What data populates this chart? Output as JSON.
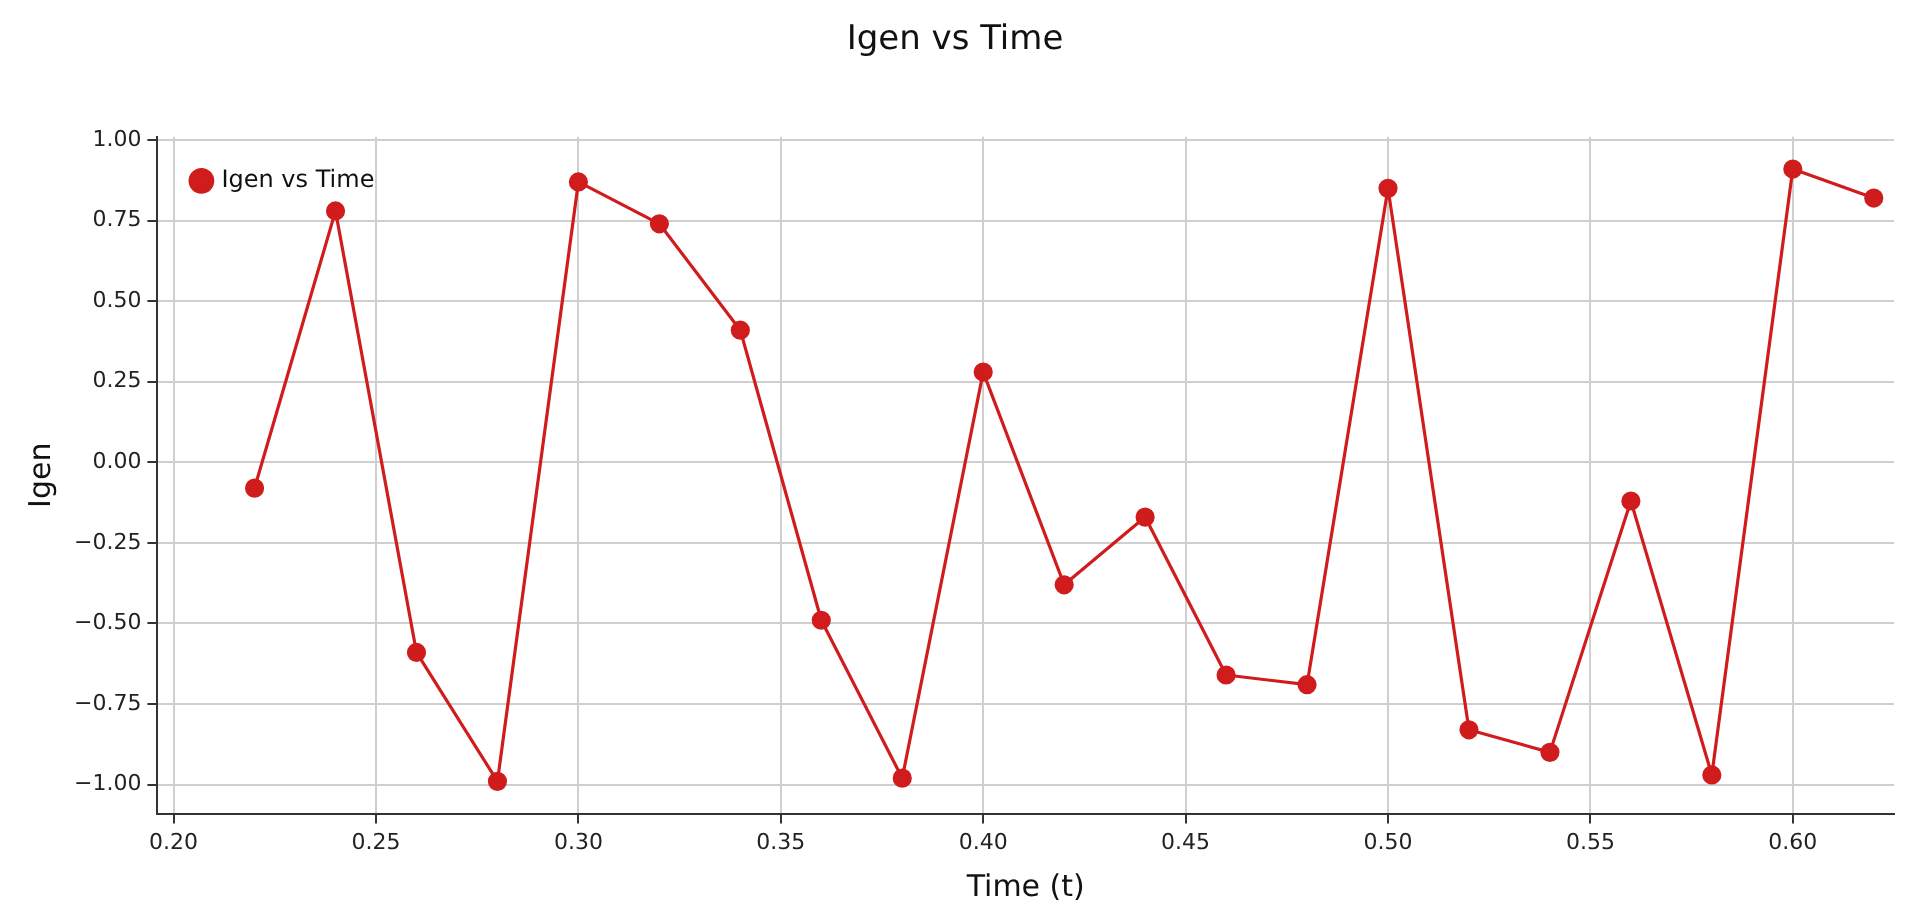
{
  "chart_data": {
    "type": "line",
    "title": "Igen vs Time",
    "xlabel": "Time (t)",
    "ylabel": "Igen",
    "x": [
      0.22,
      0.24,
      0.26,
      0.28,
      0.3,
      0.32,
      0.34,
      0.36,
      0.38,
      0.4,
      0.42,
      0.44,
      0.46,
      0.48,
      0.5,
      0.52,
      0.54,
      0.56,
      0.58,
      0.6,
      0.62
    ],
    "series": [
      {
        "name": "Igen vs Time",
        "color": "#d01c1c",
        "values": [
          -0.08,
          0.78,
          -0.59,
          -0.99,
          0.87,
          0.74,
          0.41,
          -0.49,
          -0.98,
          0.28,
          -0.38,
          -0.17,
          -0.66,
          -0.69,
          0.85,
          -0.83,
          -0.9,
          -0.12,
          -0.97,
          0.91,
          0.82
        ]
      }
    ],
    "xlim": [
      0.196,
      0.625
    ],
    "xticks": [
      {
        "value": 0.2,
        "label": "0.20"
      },
      {
        "value": 0.25,
        "label": "0.25"
      },
      {
        "value": 0.3,
        "label": "0.30"
      },
      {
        "value": 0.35,
        "label": "0.35"
      },
      {
        "value": 0.4,
        "label": "0.40"
      },
      {
        "value": 0.45,
        "label": "0.45"
      },
      {
        "value": 0.5,
        "label": "0.50"
      },
      {
        "value": 0.55,
        "label": "0.55"
      },
      {
        "value": 0.6,
        "label": "0.60"
      }
    ],
    "ylim": [
      -1.09,
      1.01
    ],
    "yticks": [
      {
        "value": -1,
        "label": "−1.00"
      },
      {
        "value": -0.75,
        "label": "−0.75"
      },
      {
        "value": -0.5,
        "label": "−0.50"
      },
      {
        "value": -0.25,
        "label": "−0.25"
      },
      {
        "value": 0,
        "label": "0.00"
      },
      {
        "value": 0.25,
        "label": "0.25"
      },
      {
        "value": 0.5,
        "label": "0.50"
      },
      {
        "value": 0.75,
        "label": "0.75"
      },
      {
        "value": 1,
        "label": "1.00"
      }
    ],
    "grid": true,
    "legend": "top left",
    "marker": "circle",
    "line_style": "solid"
  }
}
